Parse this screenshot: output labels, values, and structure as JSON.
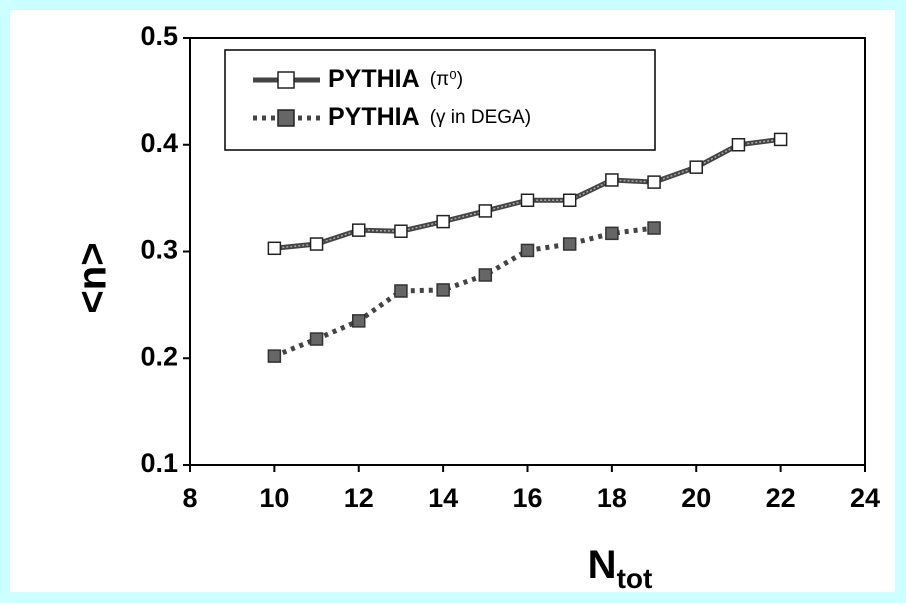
{
  "chart_data": {
    "type": "line",
    "x_label": {
      "main": "N",
      "sub": "tot"
    },
    "y_label": "<n>",
    "xlim": [
      8,
      24
    ],
    "xticks": [
      8,
      10,
      12,
      14,
      16,
      18,
      20,
      22,
      24
    ],
    "ylim": [
      0.1,
      0.5
    ],
    "yticks": [
      0.1,
      0.2,
      0.3,
      0.4,
      0.5
    ],
    "legend": "upper left",
    "series": [
      {
        "name": "PYTHIA",
        "name_note": "(π⁰)",
        "color": "#444444",
        "marker": "open",
        "x": [
          10,
          11,
          12,
          13,
          14,
          15,
          16,
          17,
          18,
          19,
          20,
          21,
          22
        ],
        "values": [
          0.303,
          0.307,
          0.32,
          0.319,
          0.328,
          0.338,
          0.348,
          0.348,
          0.367,
          0.365,
          0.379,
          0.4,
          0.405
        ]
      },
      {
        "name": "PYTHIA",
        "name_note": "(γ in DEGA)",
        "color": "#444444",
        "marker": "filled",
        "x": [
          10,
          11,
          12,
          13,
          14,
          15,
          16,
          17,
          18,
          19
        ],
        "values": [
          0.202,
          0.218,
          0.235,
          0.263,
          0.264,
          0.278,
          0.301,
          0.307,
          0.317,
          0.322
        ]
      }
    ]
  }
}
